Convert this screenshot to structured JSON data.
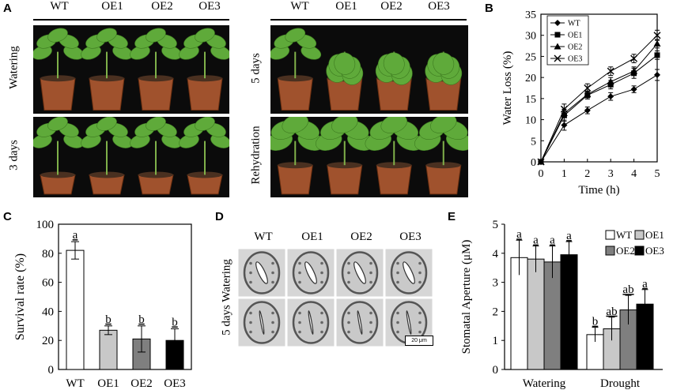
{
  "panels": {
    "A": {
      "label": "A",
      "left_headers": [
        "WT",
        "OE1",
        "OE2",
        "OE3"
      ],
      "right_headers": [
        "WT",
        "OE1",
        "OE2",
        "OE3"
      ],
      "row_labels": {
        "top_left": "Watering",
        "bottom_left": "3 days",
        "top_right": "5 days",
        "bottom_right": "Rehydration"
      }
    },
    "B": {
      "label": "B"
    },
    "C": {
      "label": "C"
    },
    "D": {
      "label": "D",
      "headers": [
        "WT",
        "OE1",
        "OE2",
        "OE3"
      ],
      "row_label": "5 days Watering",
      "scale_bar": "20 μm"
    },
    "E": {
      "label": "E"
    }
  },
  "colors": {
    "bar_white": "#ffffff",
    "bar_light": "#c8c8c8",
    "bar_mid": "#7f7f7f",
    "bar_black": "#000000",
    "pot": "#a0522d",
    "leaf": "#5faa3a"
  },
  "chart_data": [
    {
      "id": "B",
      "type": "line",
      "x": [
        0,
        1,
        2,
        3,
        4,
        5
      ],
      "xlabel": "Time (h)",
      "ylabel": "Water Loss (%)",
      "xlim": [
        0,
        5
      ],
      "ylim": [
        0,
        35
      ],
      "yticks": [
        0,
        5,
        10,
        15,
        20,
        25,
        30,
        35
      ],
      "legend": "top-left",
      "series": [
        {
          "name": "WT",
          "marker": "diamond",
          "values": [
            0,
            8.7,
            12.2,
            15.5,
            17.2,
            20.6
          ],
          "errors": [
            0,
            1.2,
            0.8,
            0.9,
            0.8,
            1.3
          ]
        },
        {
          "name": "OE1",
          "marker": "square",
          "values": [
            0,
            11.0,
            15.8,
            18.3,
            21.0,
            25.3
          ],
          "errors": [
            0,
            1.4,
            0.9,
            1.0,
            1.2,
            1.0
          ]
        },
        {
          "name": "OE2",
          "marker": "triangle",
          "values": [
            0,
            11.5,
            16.0,
            19.0,
            21.5,
            28.0
          ],
          "errors": [
            0,
            1.0,
            0.8,
            1.0,
            1.0,
            1.0
          ]
        },
        {
          "name": "OE3",
          "marker": "x",
          "values": [
            0,
            12.5,
            17.5,
            21.5,
            24.5,
            30.0
          ],
          "errors": [
            0,
            1.2,
            1.0,
            1.0,
            1.0,
            1.2
          ]
        }
      ]
    },
    {
      "id": "C",
      "type": "bar",
      "categories": [
        "WT",
        "OE1",
        "OE2",
        "OE3"
      ],
      "values": [
        82,
        27,
        21,
        20
      ],
      "errors": [
        6,
        3,
        9,
        8
      ],
      "letters": [
        "a",
        "b",
        "b",
        "b"
      ],
      "ylabel": "Survival rate (%)",
      "ylim": [
        0,
        100
      ],
      "yticks": [
        0,
        20,
        40,
        60,
        80,
        100
      ]
    },
    {
      "id": "E",
      "type": "bar",
      "categories": [
        "Watering",
        "Drought"
      ],
      "ylabel": "Stomatal Aperture (μM)",
      "ylim": [
        0,
        5
      ],
      "yticks": [
        0,
        1,
        2,
        3,
        4,
        5
      ],
      "legend": "top-right",
      "series": [
        {
          "name": "WT",
          "values": [
            3.85,
            1.2
          ],
          "errors": [
            0.6,
            0.25
          ],
          "letters": [
            "a",
            "b"
          ]
        },
        {
          "name": "OE1",
          "values": [
            3.8,
            1.4
          ],
          "errors": [
            0.45,
            0.4
          ],
          "letters": [
            "a",
            "ab"
          ]
        },
        {
          "name": "OE2",
          "values": [
            3.7,
            2.05
          ],
          "errors": [
            0.55,
            0.5
          ],
          "letters": [
            "a",
            "ab"
          ]
        },
        {
          "name": "OE3",
          "values": [
            3.95,
            2.25
          ],
          "errors": [
            0.45,
            0.5
          ],
          "letters": [
            "a",
            "a"
          ]
        }
      ]
    }
  ]
}
